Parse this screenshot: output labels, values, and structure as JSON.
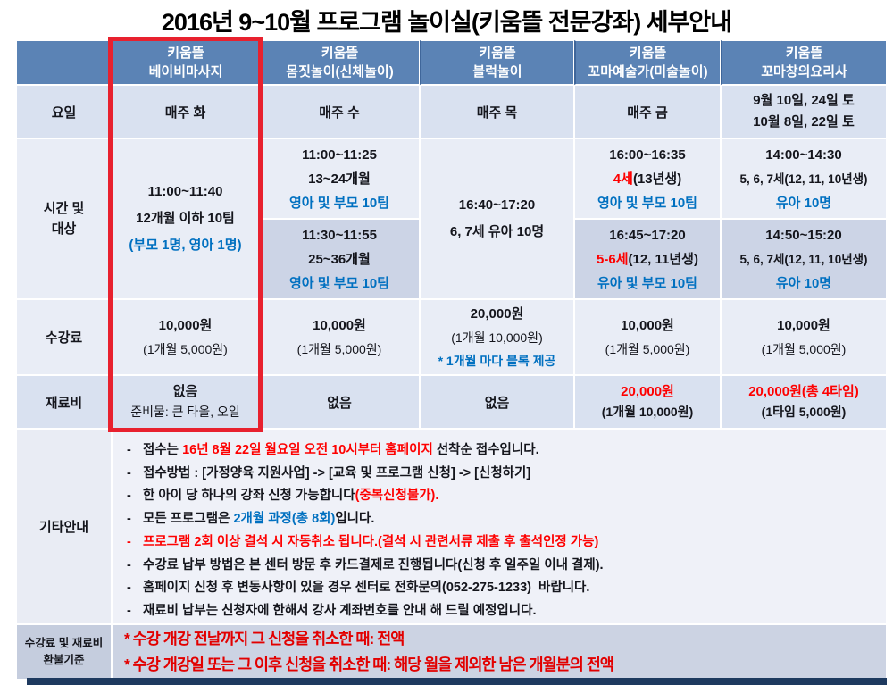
{
  "title": "2016년 9~10월 프로그램 놀이실(키움뜰 전문강좌) 세부안내",
  "colors": {
    "header_bg": "#5b83b5",
    "accent_blue": "#0070c0",
    "accent_red": "#fe0000",
    "highlight_box_red": "#e8212e",
    "row_light": "#e9edf6",
    "row_medium": "#d9e1f0",
    "row_dark_sub": "#ccd4e6",
    "bottom_bar": "#1e3a5f"
  },
  "row_labels": {
    "day": "요일",
    "time_line1": "시간 및",
    "time_line2": "대상",
    "fee": "수강료",
    "material": "재료비",
    "misc": "기타안내",
    "refund_line1": "수강료 및 재료비",
    "refund_line2": "환불기준"
  },
  "programs": {
    "p1": {
      "header1": "키움뜰",
      "header2": "베이비마사지",
      "day": "매주 화",
      "time": "11:00~11:40",
      "target": "12개월 이하 10팀",
      "note": "(부모 1명, 영아 1명)",
      "fee": "10,000원",
      "fee_sub": "(1개월 5,000원)",
      "material1": "없음",
      "material2": "준비물: 큰 타올, 오일"
    },
    "p2": {
      "header1": "키움뜰",
      "header2": "몸짓놀이(신체놀이)",
      "day": "매주 수",
      "slot1": {
        "time": "11:00~11:25",
        "target": "13~24개월",
        "note": "영아 및 부모 10팀"
      },
      "slot2": {
        "time": "11:30~11:55",
        "target": "25~36개월",
        "note": "영아 및 부모 10팀"
      },
      "fee": "10,000원",
      "fee_sub": "(1개월 5,000원)",
      "material1": "없음"
    },
    "p3": {
      "header1": "키움뜰",
      "header2": "블럭놀이",
      "day": "매주 목",
      "time": "16:40~17:20",
      "target": "6, 7세 유아 10명",
      "fee": "20,000원",
      "fee_sub": "(1개월 10,000원)",
      "fee_note": "* 1개월 마다 블록 제공",
      "material1": "없음"
    },
    "p4": {
      "header1": "키움뜰",
      "header2": "꼬마예술가(미술놀이)",
      "day": "매주 금",
      "slot1": {
        "time": "16:00~16:35",
        "age_red": "4세",
        "age_rest": "(13년생)",
        "note": "영아 및 부모 10팀"
      },
      "slot2": {
        "time": "16:45~17:20",
        "age_red": "5-6세",
        "age_rest": "(12, 11년생)",
        "note": "유아 및 부모 10팀"
      },
      "fee": "10,000원",
      "fee_sub": "(1개월 5,000원)",
      "material_red": "20,000원",
      "material_sub": "(1개월 10,000원)"
    },
    "p5": {
      "header1": "키움뜰",
      "header2": "꼬마창의요리사",
      "day1": "9월 10일, 24일 토",
      "day2": "10월 8일, 22일 토",
      "slot1": {
        "time": "14:00~14:30",
        "target": "5, 6, 7세(12, 11, 10년생)",
        "note": "유아 10명"
      },
      "slot2": {
        "time": "14:50~15:20",
        "target": "5, 6, 7세(12, 11, 10년생)",
        "note": "유아 10명"
      },
      "fee": "10,000원",
      "fee_sub": "(1개월 5,000원)",
      "material_red": "20,000원(총 4타임)",
      "material_sub": "(1타임 5,000원)"
    }
  },
  "misc": {
    "dash": "-",
    "bullets": [
      {
        "pre": "접수는 ",
        "red": "16년 8월 22일 월요일 오전 10시부터 홈페이지",
        "post": " 선착순 접수입니다."
      },
      {
        "pre": "접수방법 : [가정양육 지원사업] -> [교육 및 프로그램 신청] -> [신청하기]"
      },
      {
        "pre": "한 아이 당 하나의 강좌 신청 가능합니다",
        "red": "(중복신청불가)."
      },
      {
        "pre": "모든 프로그램은 ",
        "blue": "2개월 과정(총 8회)",
        "post": "입니다."
      },
      {
        "red": "프로그램 2회 이상 결석 시 자동취소 됩니다.(결석 시 관련서류 제출 후 출석인정 가능)"
      },
      {
        "pre": "수강료 납부 방법은 본 센터 방문 후 카드결제로 진행됩니다(신청 후 일주일 이내 결제)."
      },
      {
        "pre": "홈페이지 신청 후 변동사항이 있을 경우 센터로 전화문의(052-275-1233)  바랍니다."
      },
      {
        "pre": "재료비 납부는 신청자에 한해서 강사 계좌번호를 안내 해 드릴 예정입니다."
      }
    ]
  },
  "refund": {
    "line1": "* 수강 개강 전날까지 그 신청을 취소한 때: 전액",
    "line2": "* 수강 개강일 또는 그 이후 신청을 취소한 때: 해당 월을 제외한 남은 개월분의 전액"
  }
}
